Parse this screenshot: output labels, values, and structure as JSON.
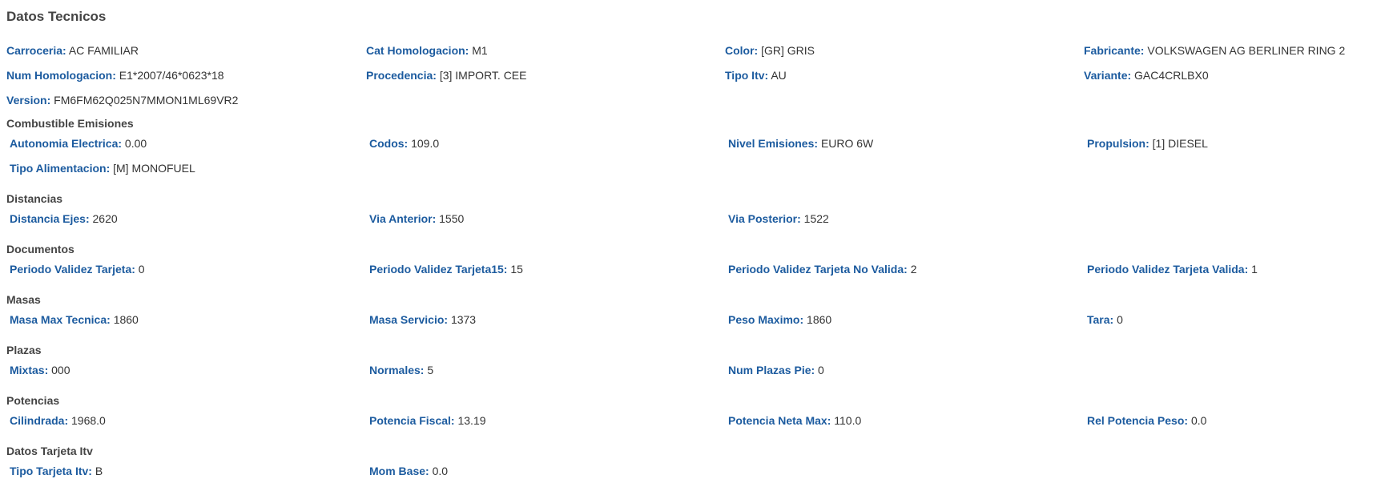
{
  "title": "Datos Tecnicos",
  "general": [
    [
      {
        "label": "Carroceria:",
        "value": "AC FAMILIAR"
      },
      {
        "label": "Cat Homologacion:",
        "value": "M1"
      },
      {
        "label": "Color:",
        "value": "[GR] GRIS"
      },
      {
        "label": "Fabricante:",
        "value": "VOLKSWAGEN AG BERLINER RING 2"
      }
    ],
    [
      {
        "label": "Num Homologacion:",
        "value": "E1*2007/46*0623*18"
      },
      {
        "label": "Procedencia:",
        "value": "[3] IMPORT. CEE"
      },
      {
        "label": "Tipo Itv:",
        "value": "AU"
      },
      {
        "label": "Variante:",
        "value": "GAC4CRLBX0"
      }
    ],
    [
      {
        "label": "Version:",
        "value": "FM6FM62Q025N7MMON1ML69VR2"
      }
    ]
  ],
  "sections": [
    {
      "heading": "Combustible Emisiones",
      "rows": [
        [
          {
            "label": "Autonomia Electrica:",
            "value": "0.00"
          },
          {
            "label": "Codos:",
            "value": "109.0"
          },
          {
            "label": "Nivel Emisiones:",
            "value": "EURO 6W"
          },
          {
            "label": "Propulsion:",
            "value": "[1] DIESEL"
          }
        ],
        [
          {
            "label": "Tipo Alimentacion:",
            "value": "[M] MONOFUEL"
          }
        ]
      ]
    },
    {
      "heading": "Distancias",
      "rows": [
        [
          {
            "label": "Distancia Ejes:",
            "value": "2620"
          },
          {
            "label": "Via Anterior:",
            "value": "1550"
          },
          {
            "label": "Via Posterior:",
            "value": "1522"
          }
        ]
      ]
    },
    {
      "heading": "Documentos",
      "rows": [
        [
          {
            "label": "Periodo Validez Tarjeta:",
            "value": "0"
          },
          {
            "label": "Periodo Validez Tarjeta15:",
            "value": "15"
          },
          {
            "label": "Periodo Validez Tarjeta No Valida:",
            "value": "2"
          },
          {
            "label": "Periodo Validez Tarjeta Valida:",
            "value": "1"
          }
        ]
      ]
    },
    {
      "heading": "Masas",
      "rows": [
        [
          {
            "label": "Masa Max Tecnica:",
            "value": "1860"
          },
          {
            "label": "Masa Servicio:",
            "value": "1373"
          },
          {
            "label": "Peso Maximo:",
            "value": "1860"
          },
          {
            "label": "Tara:",
            "value": "0"
          }
        ]
      ]
    },
    {
      "heading": "Plazas",
      "rows": [
        [
          {
            "label": "Mixtas:",
            "value": "000"
          },
          {
            "label": "Normales:",
            "value": "5"
          },
          {
            "label": "Num Plazas Pie:",
            "value": "0"
          }
        ]
      ]
    },
    {
      "heading": "Potencias",
      "rows": [
        [
          {
            "label": "Cilindrada:",
            "value": "1968.0"
          },
          {
            "label": "Potencia Fiscal:",
            "value": "13.19"
          },
          {
            "label": "Potencia Neta Max:",
            "value": "110.0"
          },
          {
            "label": "Rel Potencia Peso:",
            "value": "0.0"
          }
        ]
      ]
    },
    {
      "heading": "Datos Tarjeta Itv",
      "rows": [
        [
          {
            "label": "Tipo Tarjeta Itv:",
            "value": "B"
          },
          {
            "label": "Mom Base:",
            "value": "0.0"
          }
        ]
      ]
    }
  ],
  "colors": {
    "label": "#1c5b9f",
    "value": "#333333",
    "heading": "#444444"
  }
}
